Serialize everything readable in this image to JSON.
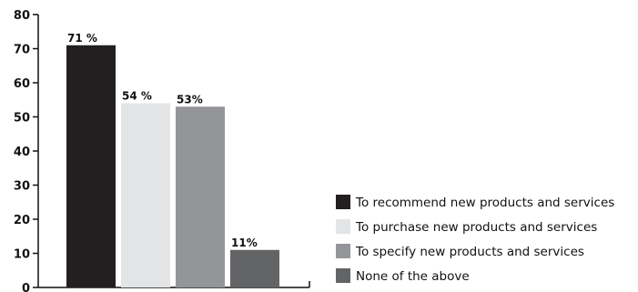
{
  "chart_data": {
    "type": "bar",
    "categories": [
      "To recommend new products and services",
      "To purchase new products and services",
      "To specify new products and services",
      "None of the above"
    ],
    "values": [
      71,
      54,
      53,
      11
    ],
    "data_labels": [
      "71 %",
      "54 %",
      "53%",
      "11%"
    ],
    "colors": [
      "#231f20",
      "#e3e4e5",
      "#939598",
      "#636466"
    ],
    "ylim": [
      0,
      80
    ],
    "yticks": [
      0,
      10,
      20,
      30,
      40,
      50,
      60,
      70,
      80
    ],
    "legend_position": "right",
    "grid": false,
    "title": "",
    "xlabel": "",
    "ylabel": ""
  }
}
